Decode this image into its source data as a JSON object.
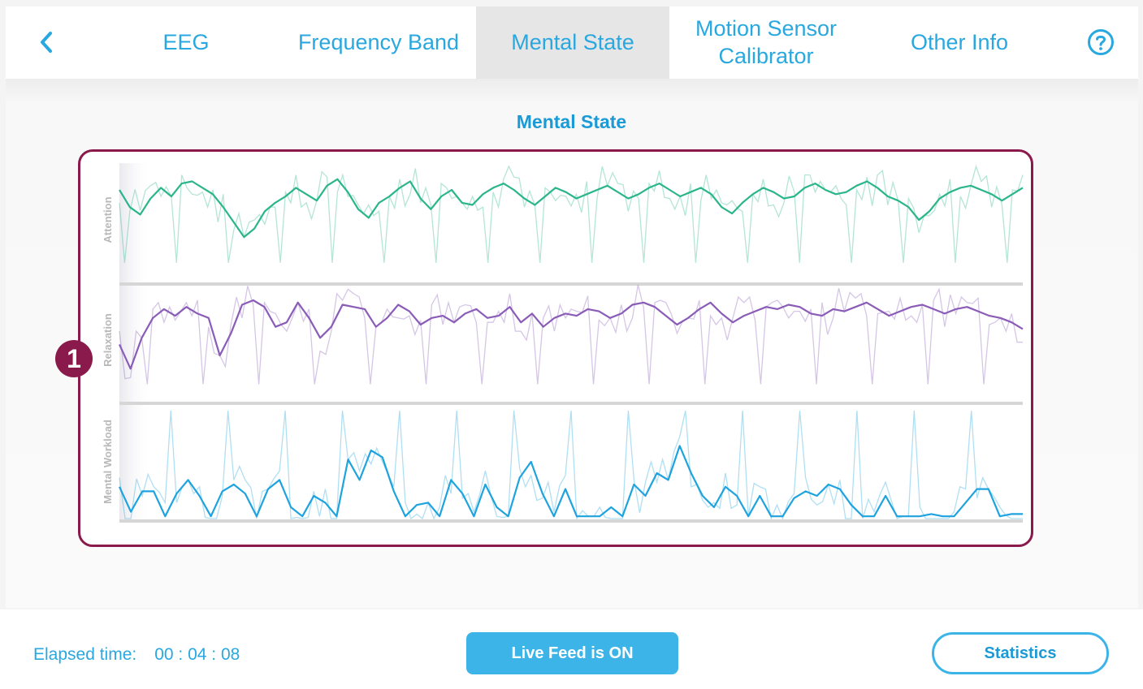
{
  "nav": {
    "tabs": [
      {
        "label": "EEG"
      },
      {
        "label": "Frequency Band"
      },
      {
        "label": "Mental State",
        "active": true
      },
      {
        "label_line1": "Motion Sensor",
        "label_line2": "Calibrator"
      },
      {
        "label": "Other Info"
      }
    ],
    "back_icon": "chevron-left-icon",
    "help_icon": "question-circle-icon"
  },
  "page_title": "Mental State",
  "callout_number": "1",
  "chart_data": {
    "type": "line",
    "panels": [
      {
        "ylabel": "Attention",
        "color": "#2bb58a",
        "values": [
          78,
          62,
          55,
          70,
          80,
          72,
          84,
          86,
          80,
          74,
          62,
          48,
          34,
          42,
          58,
          66,
          72,
          80,
          74,
          68,
          82,
          88,
          76,
          60,
          52,
          66,
          72,
          80,
          86,
          70,
          60,
          72,
          78,
          66,
          64,
          74,
          80,
          84,
          78,
          70,
          64,
          72,
          80,
          76,
          70,
          74,
          78,
          82,
          76,
          70,
          74,
          80,
          84,
          78,
          72,
          76,
          80,
          74,
          62,
          56,
          66,
          74,
          80,
          76,
          70,
          72,
          80,
          84,
          78,
          74,
          76,
          82,
          86,
          80,
          72,
          68,
          62,
          50,
          58,
          70,
          76,
          80,
          82,
          78,
          74,
          68,
          74,
          80
        ]
      },
      {
        "ylabel": "Relaxation",
        "color": "#8a5cb8",
        "values": [
          46,
          24,
          52,
          70,
          78,
          72,
          80,
          74,
          70,
          36,
          56,
          82,
          86,
          80,
          62,
          66,
          84,
          70,
          52,
          62,
          82,
          80,
          78,
          62,
          70,
          82,
          76,
          64,
          70,
          72,
          66,
          74,
          78,
          70,
          72,
          80,
          66,
          74,
          62,
          70,
          74,
          72,
          78,
          76,
          70,
          74,
          82,
          84,
          80,
          72,
          64,
          70,
          78,
          84,
          74,
          66,
          72,
          76,
          80,
          78,
          82,
          80,
          74,
          72,
          78,
          76,
          80,
          84,
          78,
          72,
          76,
          80,
          82,
          78,
          74,
          78,
          80,
          76,
          72,
          70,
          66,
          60
        ]
      },
      {
        "ylabel": "Mental Workload",
        "color": "#1ea3de",
        "values": [
          28,
          6,
          24,
          24,
          2,
          22,
          34,
          20,
          2,
          24,
          30,
          22,
          2,
          26,
          34,
          10,
          2,
          20,
          14,
          2,
          52,
          34,
          60,
          54,
          24,
          2,
          12,
          14,
          2,
          34,
          22,
          2,
          30,
          10,
          2,
          36,
          50,
          22,
          2,
          26,
          2,
          2,
          2,
          10,
          2,
          30,
          20,
          40,
          34,
          64,
          40,
          20,
          10,
          28,
          20,
          2,
          20,
          2,
          2,
          18,
          24,
          20,
          30,
          26,
          12,
          2,
          2,
          20,
          2,
          2,
          2,
          4,
          2,
          2,
          14,
          26,
          26,
          2,
          4,
          4
        ]
      }
    ]
  },
  "footer": {
    "elapsed_label": "Elapsed time:",
    "elapsed_value": "00 : 04 : 08",
    "live_feed_label": "Live Feed is ON",
    "statistics_label": "Statistics"
  }
}
